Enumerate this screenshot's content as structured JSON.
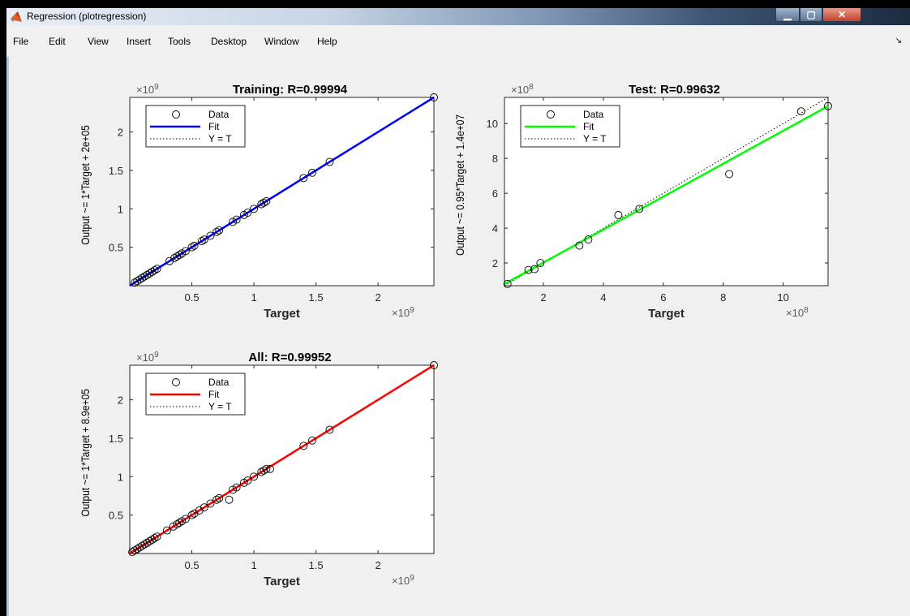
{
  "window": {
    "title": "Regression (plotregression)",
    "controls": {
      "minimize": "▁",
      "maximize": "▢",
      "close": "✕"
    }
  },
  "menu": [
    "File",
    "Edit",
    "View",
    "Insert",
    "Tools",
    "Desktop",
    "Window",
    "Help"
  ],
  "icons": {
    "app": "matlab-icon",
    "dock": "dock-arrow-icon"
  },
  "chart_data": [
    {
      "type": "scatter",
      "title": "Training: R=0.99994",
      "xlabel": "Target",
      "ylabel": "Output ~= 1*Target + 2e+05",
      "multiplier": "9",
      "xlim": [
        0.0,
        2.45
      ],
      "ylim": [
        0.0,
        2.45
      ],
      "xticks": [
        0.5,
        1,
        1.5,
        2
      ],
      "yticks": [
        0.5,
        1,
        1.5,
        2
      ],
      "xtick_labels": [
        "0.5",
        "1",
        "1.5",
        "2"
      ],
      "ytick_labels": [
        "0.5",
        "1",
        "1.5",
        "2"
      ],
      "fit_color": "#0000ff",
      "fit_line": [
        [
          0.0,
          0.0
        ],
        [
          2.45,
          2.45
        ]
      ],
      "legend": [
        "Data",
        "Fit",
        "Y = T"
      ],
      "x": [
        0.04,
        0.06,
        0.08,
        0.1,
        0.12,
        0.14,
        0.16,
        0.18,
        0.2,
        0.22,
        0.32,
        0.36,
        0.38,
        0.4,
        0.42,
        0.45,
        0.5,
        0.52,
        0.58,
        0.6,
        0.65,
        0.7,
        0.72,
        0.83,
        0.86,
        0.92,
        0.95,
        1.0,
        1.06,
        1.08,
        1.1,
        1.4,
        1.47,
        1.61,
        2.45
      ],
      "y": [
        0.04,
        0.06,
        0.08,
        0.1,
        0.12,
        0.14,
        0.16,
        0.18,
        0.2,
        0.22,
        0.32,
        0.36,
        0.38,
        0.4,
        0.42,
        0.45,
        0.5,
        0.52,
        0.58,
        0.6,
        0.65,
        0.7,
        0.72,
        0.83,
        0.86,
        0.92,
        0.95,
        1.0,
        1.06,
        1.08,
        1.1,
        1.4,
        1.47,
        1.61,
        2.45
      ]
    },
    {
      "type": "scatter",
      "title": "Test: R=0.99632",
      "xlabel": "Target",
      "ylabel": "Output ~= 0.95*Target + 1.4e+07",
      "multiplier": "8",
      "xlim": [
        0.7,
        11.5
      ],
      "ylim": [
        0.7,
        11.5
      ],
      "xticks": [
        2,
        4,
        6,
        8,
        10
      ],
      "yticks": [
        2,
        4,
        6,
        8,
        10
      ],
      "xtick_labels": [
        "2",
        "4",
        "6",
        "8",
        "10"
      ],
      "ytick_labels": [
        "2",
        "4",
        "6",
        "8",
        "10"
      ],
      "fit_color": "#00ff00",
      "fit_line": [
        [
          0.7,
          0.8
        ],
        [
          11.5,
          11.0
        ]
      ],
      "legend": [
        "Data",
        "Fit",
        "Y = T"
      ],
      "x": [
        0.8,
        1.5,
        1.7,
        1.9,
        3.2,
        3.5,
        4.5,
        5.2,
        8.2,
        10.6,
        11.5
      ],
      "y": [
        0.8,
        1.6,
        1.65,
        2.0,
        3.0,
        3.35,
        4.75,
        5.1,
        7.1,
        10.7,
        11.0
      ]
    },
    {
      "type": "scatter",
      "title": "All: R=0.99952",
      "xlabel": "Target",
      "ylabel": "Output ~= 1*Target + 8.9e+05",
      "multiplier": "9",
      "xlim": [
        0.0,
        2.45
      ],
      "ylim": [
        0.0,
        2.45
      ],
      "xticks": [
        0.5,
        1,
        1.5,
        2
      ],
      "yticks": [
        0.5,
        1,
        1.5,
        2
      ],
      "xtick_labels": [
        "0.5",
        "1",
        "1.5",
        "2"
      ],
      "ytick_labels": [
        "0.5",
        "1",
        "1.5",
        "2"
      ],
      "fit_color": "#ff0000",
      "fit_line": [
        [
          0.0,
          0.0
        ],
        [
          2.45,
          2.45
        ]
      ],
      "legend": [
        "Data",
        "Fit",
        "Y = T"
      ],
      "x": [
        0.02,
        0.04,
        0.06,
        0.08,
        0.1,
        0.12,
        0.14,
        0.16,
        0.18,
        0.2,
        0.22,
        0.3,
        0.35,
        0.38,
        0.4,
        0.42,
        0.45,
        0.5,
        0.52,
        0.56,
        0.6,
        0.65,
        0.7,
        0.72,
        0.8,
        0.83,
        0.86,
        0.92,
        0.95,
        1.0,
        1.06,
        1.08,
        1.1,
        1.13,
        1.4,
        1.47,
        1.61,
        2.45
      ],
      "y": [
        0.02,
        0.04,
        0.06,
        0.08,
        0.1,
        0.12,
        0.14,
        0.16,
        0.18,
        0.2,
        0.22,
        0.3,
        0.35,
        0.38,
        0.4,
        0.42,
        0.45,
        0.5,
        0.52,
        0.56,
        0.6,
        0.65,
        0.7,
        0.72,
        0.7,
        0.83,
        0.86,
        0.92,
        0.95,
        1.0,
        1.06,
        1.08,
        1.1,
        1.1,
        1.4,
        1.47,
        1.61,
        2.45
      ]
    }
  ]
}
